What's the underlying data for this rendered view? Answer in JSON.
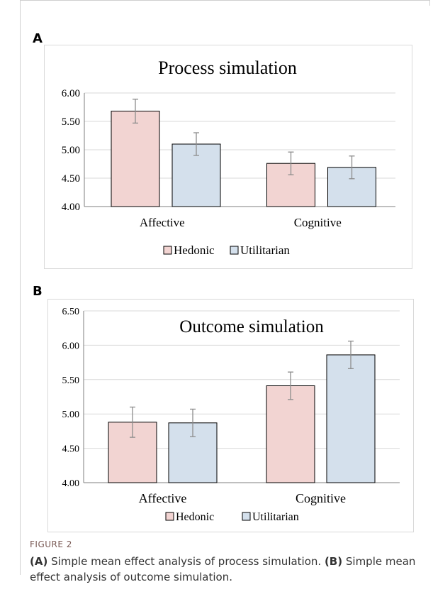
{
  "panels": [
    {
      "letter": "A"
    },
    {
      "letter": "B"
    }
  ],
  "caption": {
    "label": "FIGURE 2",
    "part_a_tag": "(A)",
    "part_a_text": " Simple mean effect analysis of process simulation. ",
    "part_b_tag": "(B)",
    "part_b_text": " Simple mean effect analysis of outcome simulation."
  },
  "colors": {
    "hedonic": "#f2d4d2",
    "utilitarian": "#d4e0ec",
    "bar_stroke": "#000000",
    "grid": "#d9d9d9",
    "error_bar": "#8c8c8c"
  },
  "chart_data": [
    {
      "type": "bar",
      "title": "Process simulation",
      "categories": [
        "Affective",
        "Cognitive"
      ],
      "series": [
        {
          "name": "Hedonic",
          "values": [
            5.68,
            4.76
          ],
          "errors": [
            0.21,
            0.2
          ]
        },
        {
          "name": "Utilitarian",
          "values": [
            5.1,
            4.69
          ],
          "errors": [
            0.2,
            0.2
          ]
        }
      ],
      "ylim": [
        4.0,
        6.0
      ],
      "yticks": [
        "4.00",
        "4.50",
        "5.00",
        "5.50",
        "6.00"
      ],
      "grid": true,
      "legend": "bottom"
    },
    {
      "type": "bar",
      "title": "Outcome simulation",
      "categories": [
        "Affective",
        "Cognitive"
      ],
      "series": [
        {
          "name": "Hedonic",
          "values": [
            4.88,
            5.41
          ],
          "errors": [
            0.22,
            0.2
          ]
        },
        {
          "name": "Utilitarian",
          "values": [
            4.87,
            5.86
          ],
          "errors": [
            0.2,
            0.2
          ]
        }
      ],
      "ylim": [
        4.0,
        6.5
      ],
      "yticks": [
        "4.00",
        "4.50",
        "5.00",
        "5.50",
        "6.00",
        "6.50"
      ],
      "grid": true,
      "legend": "bottom"
    }
  ]
}
